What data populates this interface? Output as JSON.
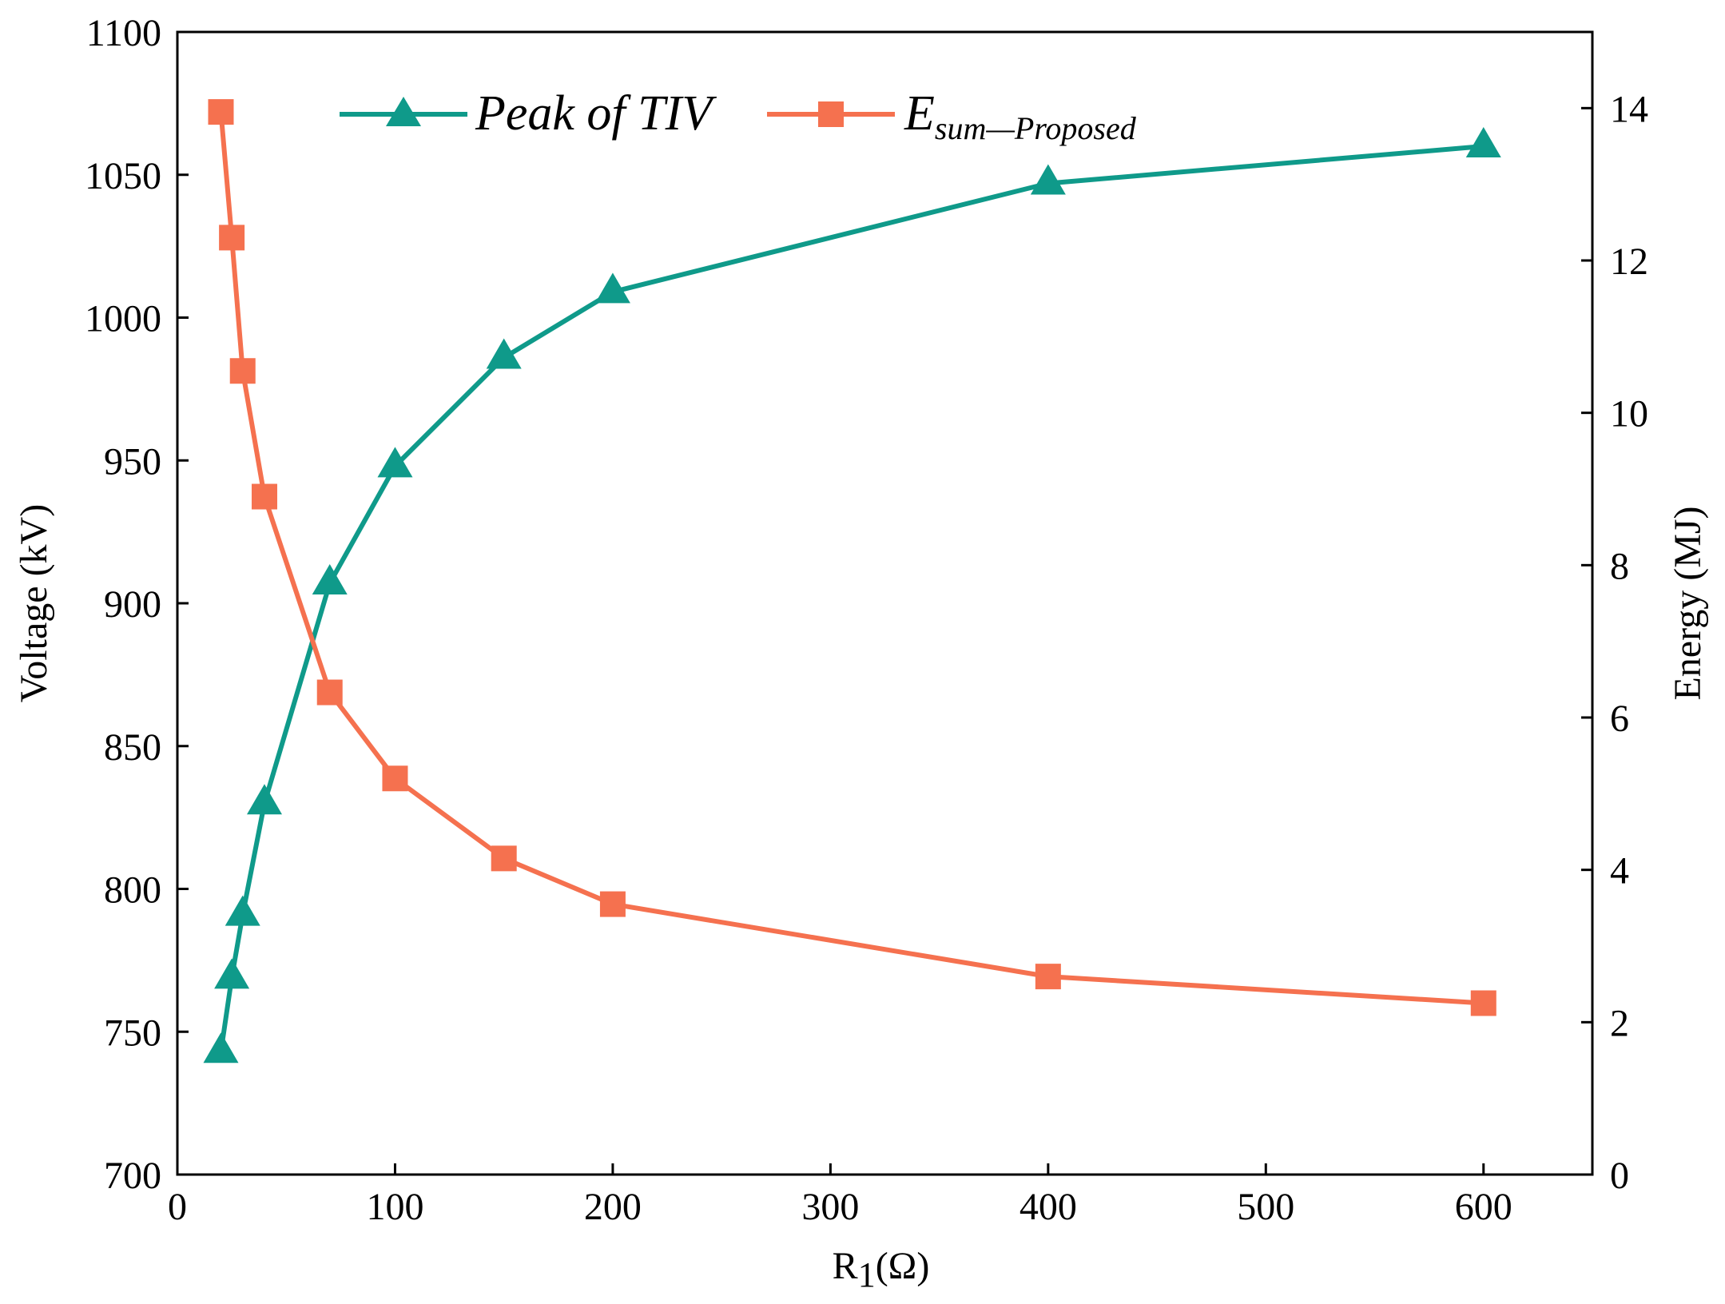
{
  "chart_data": {
    "type": "line",
    "title": "",
    "x": [
      20,
      25,
      30,
      40,
      70,
      100,
      150,
      200,
      400,
      600
    ],
    "xlabel": {
      "main": "R",
      "sub": "1",
      "unit": "(Ω)"
    },
    "ylabel_left": "Voltage (kV)",
    "ylabel_right": "Energy (MJ)",
    "xlim": [
      0,
      650
    ],
    "ylim_left": [
      700,
      1100
    ],
    "ylim_right": [
      0,
      15
    ],
    "xticks": [
      0,
      100,
      200,
      300,
      400,
      500,
      600
    ],
    "yticks_left": [
      700,
      750,
      800,
      850,
      900,
      950,
      1000,
      1050,
      1100
    ],
    "yticks_right": [
      0,
      2,
      4,
      6,
      8,
      10,
      12,
      14
    ],
    "grid": false,
    "legend_position": "top",
    "series": [
      {
        "name": "Peak of TIV",
        "axis": "left",
        "marker": "triangle",
        "color": "#0f9a8a",
        "values": [
          743,
          769,
          791,
          830,
          907,
          948,
          986,
          1009,
          1047,
          1060
        ]
      },
      {
        "name": "E",
        "name_sub": "sum—Proposed",
        "axis": "right",
        "marker": "square",
        "color": "#f5714f",
        "values": [
          13.95,
          12.3,
          10.55,
          8.9,
          6.33,
          5.2,
          4.15,
          3.55,
          2.6,
          2.25
        ]
      }
    ]
  }
}
